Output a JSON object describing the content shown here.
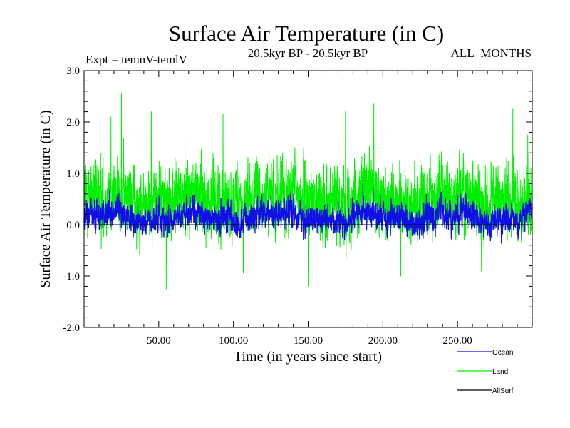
{
  "chart_data": {
    "type": "line",
    "title": "Surface Air Temperature (in C)",
    "subtitle": "20.5kyr BP - 20.5kyr BP",
    "left_note": "Expt = temnV-temlV",
    "right_note": "ALL_MONTHS",
    "xlabel": "Time (in years since start)",
    "ylabel": "Surface Air Temperature (in C)",
    "xlim": [
      0,
      300
    ],
    "ylim": [
      -2.0,
      3.0
    ],
    "x_ticks": [
      50,
      100,
      150,
      200,
      250
    ],
    "x_tick_labels": [
      "50.00",
      "100.00",
      "150.00",
      "200.00",
      "250.00"
    ],
    "y_ticks": [
      -2.0,
      -1.0,
      0.0,
      1.0,
      2.0,
      3.0
    ],
    "y_tick_labels": [
      "-2.0",
      "-1.0",
      "0.0",
      "1.0",
      "2.0",
      "3.0"
    ],
    "zero_line": 0.0,
    "legend_position": "bottom-right",
    "series": [
      {
        "name": "Land",
        "color": "#00ee00",
        "samples": 3600,
        "mean": 0.5,
        "observed_min": -1.25,
        "observed_max": 2.55,
        "peaks": [
          {
            "x": 18,
            "y": 2.1
          },
          {
            "x": 25,
            "y": 2.55
          },
          {
            "x": 45,
            "y": 2.2
          },
          {
            "x": 55,
            "y": -1.25
          },
          {
            "x": 93,
            "y": 2.15
          },
          {
            "x": 150,
            "y": -1.2
          },
          {
            "x": 175,
            "y": 2.2
          },
          {
            "x": 194,
            "y": 2.35
          },
          {
            "x": 212,
            "y": -1.0
          },
          {
            "x": 266,
            "y": -0.9
          },
          {
            "x": 287,
            "y": 2.25
          },
          {
            "x": 297,
            "y": 1.75
          }
        ]
      },
      {
        "name": "Ocean",
        "color": "#1010e6",
        "samples": 3600,
        "mean": 0.15,
        "observed_min": -0.7,
        "observed_max": 0.8,
        "peaks": []
      },
      {
        "name": "AllSurf",
        "color": "#000000",
        "samples": 0,
        "mean": 0,
        "observed_min": 0,
        "observed_max": 0,
        "peaks": []
      }
    ]
  }
}
